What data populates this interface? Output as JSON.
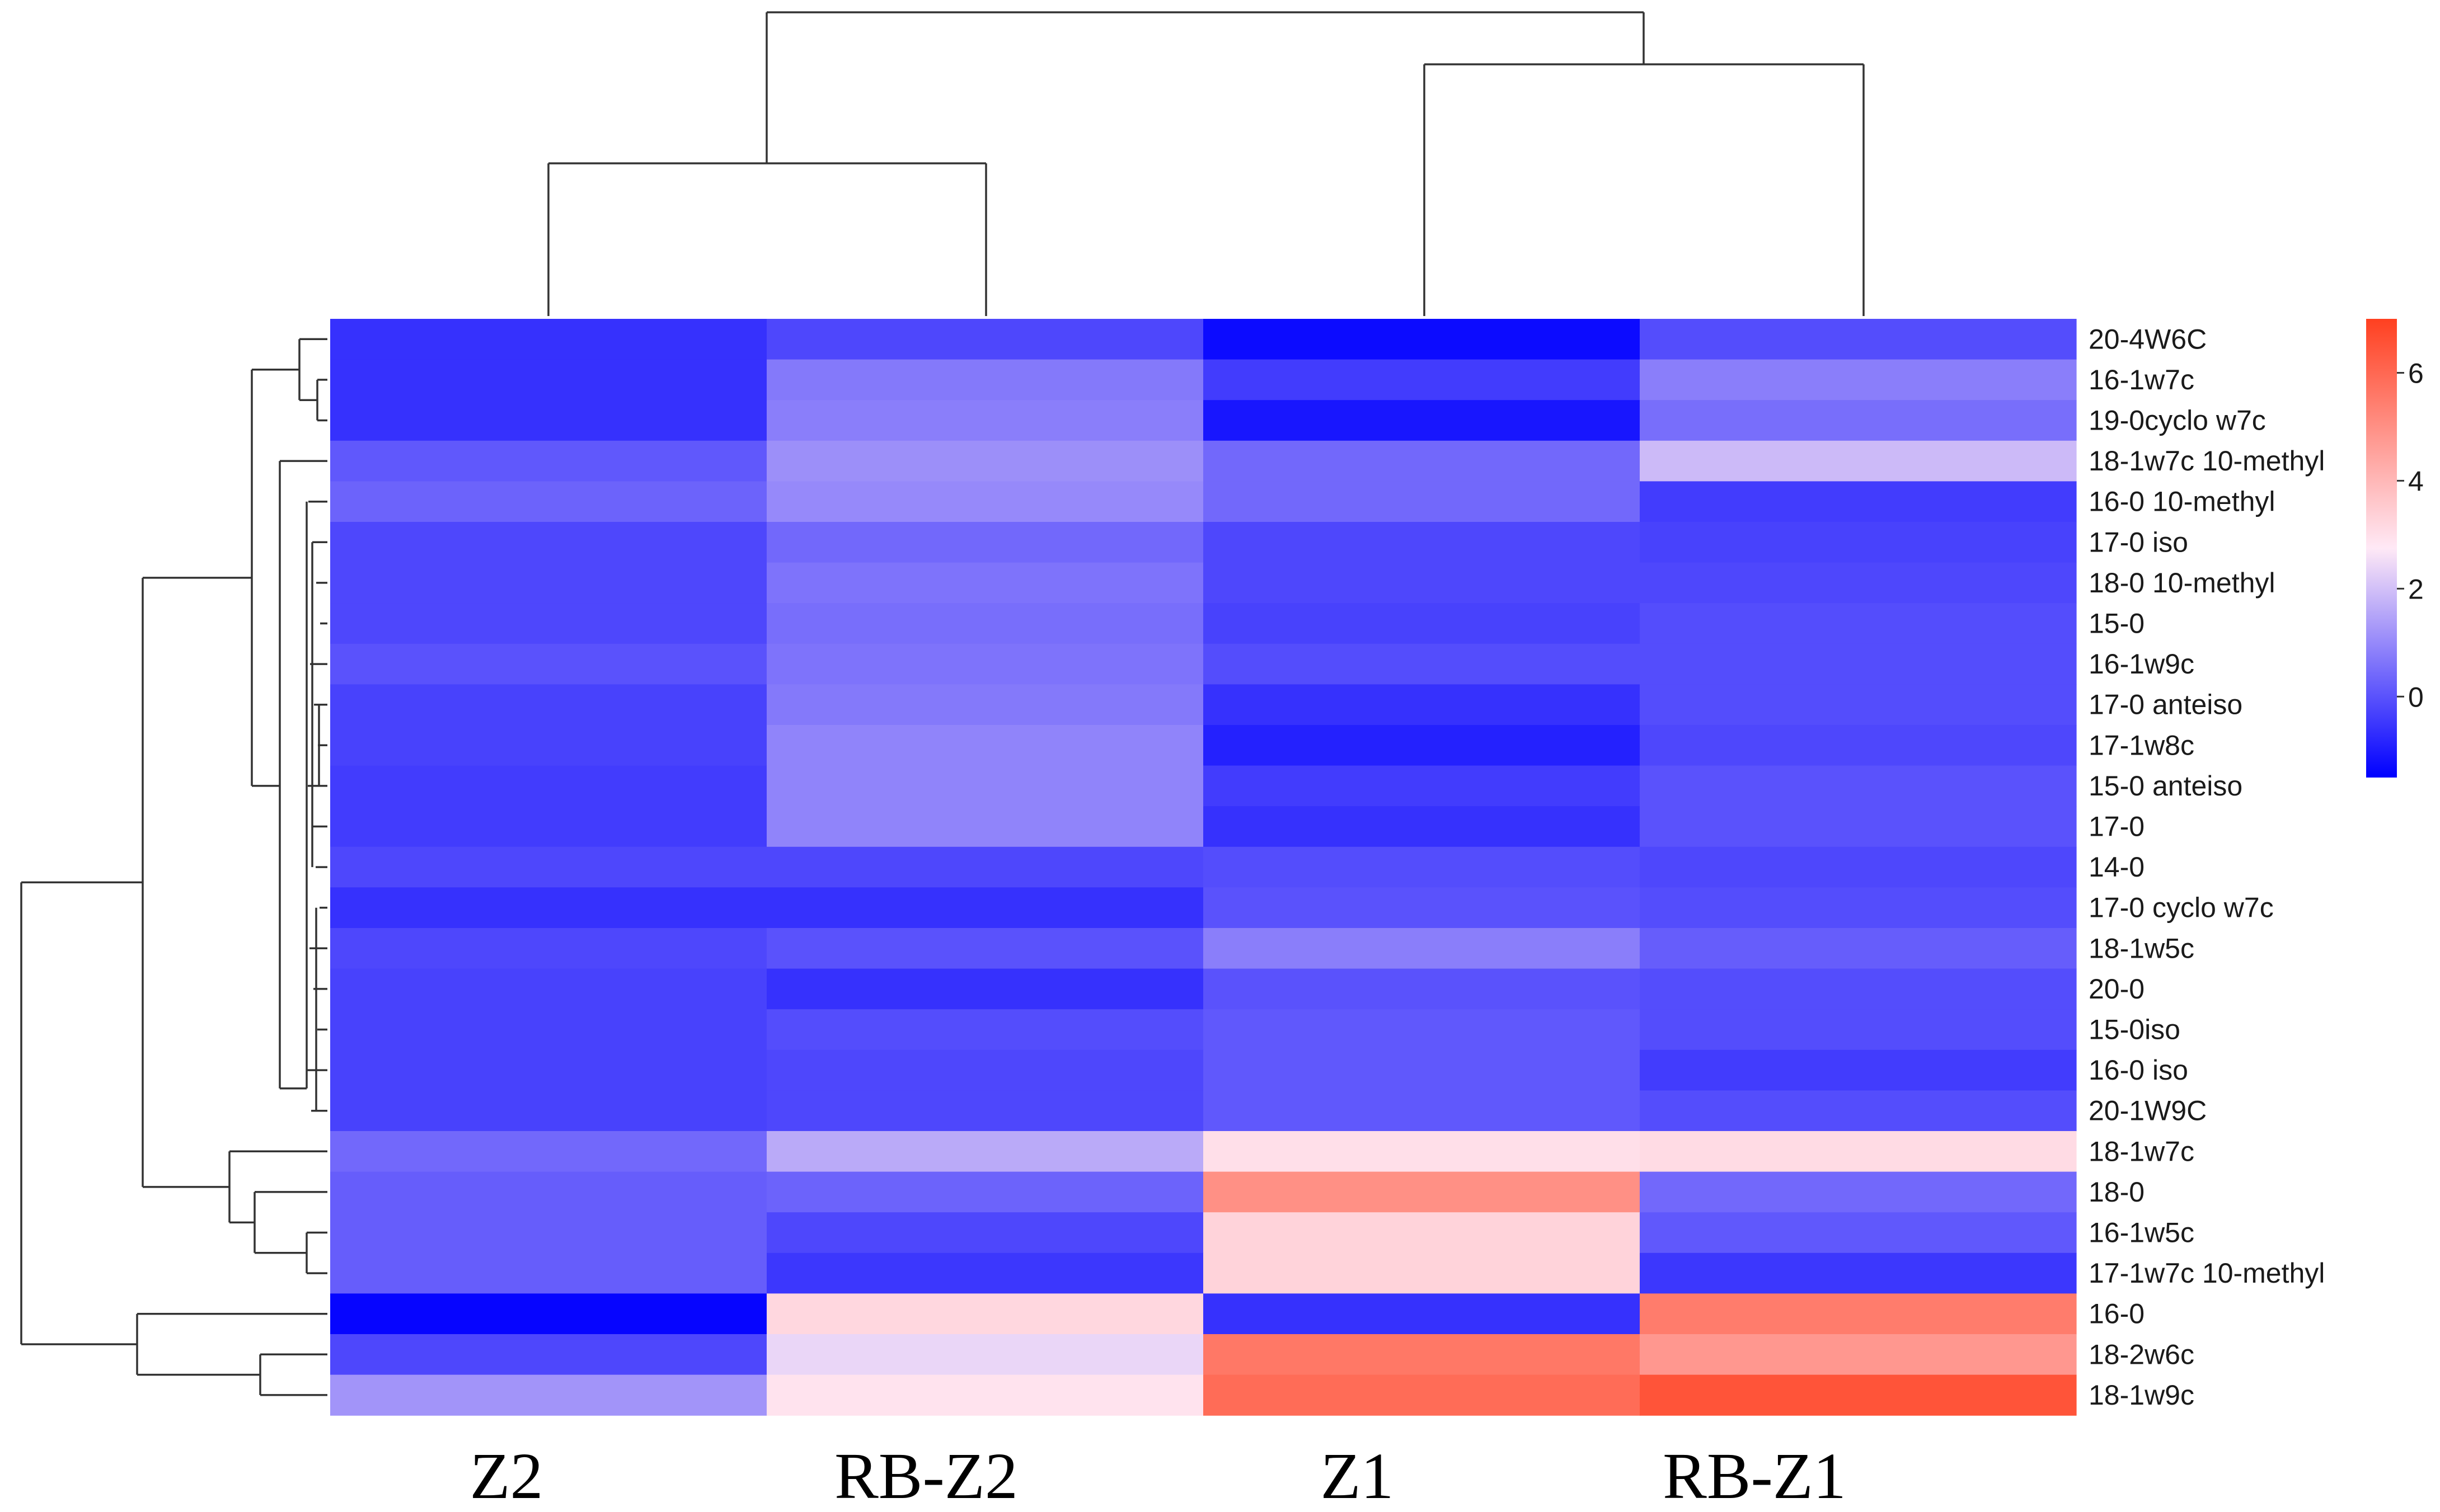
{
  "chart_data": {
    "type": "heatmap",
    "title": "",
    "columns": [
      "Z2",
      "RB-Z2",
      "Z1",
      "RB-Z1"
    ],
    "rows": [
      "20-4W6C",
      "16-1w7c",
      "19-0cyclo w7c",
      "18-1w7c 10-methyl",
      "16-0 10-methyl",
      "17-0 iso",
      "18-0 10-methyl",
      "15-0",
      "16-1w9c",
      "17-0 anteiso",
      "17-1w8c",
      "15-0 anteiso",
      "17-0",
      "14-0",
      "17-0 cyclo w7c",
      "18-1w5c",
      "20-0",
      "15-0iso",
      "16-0 iso",
      "20-1W9C",
      "18-1w7c",
      "18-0",
      "16-1w5c",
      "17-1w7c 10-methyl",
      "16-0",
      "18-2w6c",
      "18-1w9c"
    ],
    "values": [
      [
        -0.6,
        -0.2,
        -1.3,
        -0.1
      ],
      [
        -0.6,
        0.7,
        -0.4,
        0.8
      ],
      [
        -0.6,
        0.8,
        -1.1,
        0.5
      ],
      [
        0.1,
        1.1,
        0.4,
        1.9
      ],
      [
        0.3,
        1.0,
        0.4,
        -0.4
      ],
      [
        -0.2,
        0.4,
        -0.2,
        -0.3
      ],
      [
        -0.2,
        0.6,
        -0.2,
        -0.2
      ],
      [
        -0.2,
        0.5,
        -0.3,
        -0.1
      ],
      [
        0.0,
        0.6,
        -0.1,
        -0.1
      ],
      [
        -0.3,
        0.7,
        -0.6,
        -0.1
      ],
      [
        -0.3,
        0.9,
        -0.9,
        -0.2
      ],
      [
        -0.4,
        0.9,
        -0.4,
        0.0
      ],
      [
        -0.4,
        0.9,
        -0.6,
        0.0
      ],
      [
        -0.2,
        -0.2,
        -0.1,
        -0.2
      ],
      [
        -0.6,
        -0.6,
        0.0,
        -0.1
      ],
      [
        -0.2,
        0.0,
        0.8,
        0.2
      ],
      [
        -0.3,
        -0.6,
        0.0,
        -0.1
      ],
      [
        -0.3,
        -0.1,
        0.1,
        -0.1
      ],
      [
        -0.3,
        -0.2,
        0.1,
        -0.4
      ],
      [
        -0.3,
        -0.2,
        0.1,
        -0.1
      ],
      [
        0.4,
        1.6,
        3.0,
        3.1
      ],
      [
        0.2,
        0.3,
        5.0,
        0.4
      ],
      [
        0.2,
        -0.2,
        3.3,
        0.1
      ],
      [
        0.2,
        -0.5,
        3.3,
        -0.5
      ],
      [
        -1.4,
        3.2,
        -0.6,
        5.5
      ],
      [
        -0.2,
        2.4,
        5.6,
        4.8
      ],
      [
        1.2,
        2.9,
        5.9,
        6.5
      ]
    ],
    "color_scale": {
      "min": -1.5,
      "max": 7,
      "ticks": [
        0,
        2,
        4,
        6
      ],
      "colors": [
        "#0000ff",
        "#ffe9f6",
        "#ff4020"
      ]
    },
    "column_dendrogram": {
      "order": [
        "Z2",
        "RB-Z2",
        "Z1",
        "RB-Z1"
      ],
      "merges": [
        [
          0,
          1
        ],
        [
          2,
          3
        ],
        [
          "01",
          "23"
        ]
      ]
    },
    "row_dendrogram": "hierarchical clustering of 27 fatty acid rows"
  }
}
